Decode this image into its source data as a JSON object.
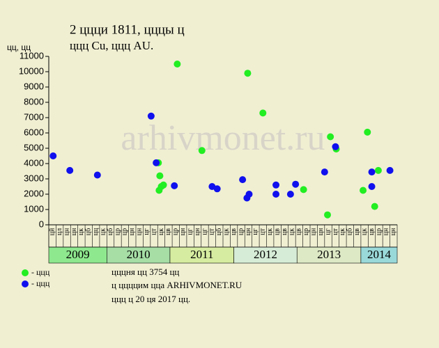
{
  "chart_data": {
    "type": "scatter",
    "title": "2 ццци 1811, цццы ц",
    "subtitle": "ццц Cu, ццц AU.",
    "y_label": "цц, цц",
    "watermark": "arhivmonet.ru",
    "xlim": [
      0,
      48
    ],
    "ylim": [
      0,
      11000
    ],
    "yticks": [
      0,
      1000,
      2000,
      3000,
      4000,
      5000,
      6000,
      7000,
      8000,
      9000,
      10000,
      11000
    ],
    "month_labels": [
      "цй",
      "цл",
      "цн",
      "цн",
      "цк",
      "цб",
      "цц",
      "цк",
      "цб",
      "цр",
      "цр",
      "цн",
      "цн",
      "цг",
      "цт",
      "цк",
      "цв",
      "цр",
      "цн",
      "цг",
      "цн",
      "цг",
      "цт",
      "цб",
      "цк",
      "цв",
      "цр",
      "цн",
      "цг",
      "цт",
      "цк",
      "цв",
      "цв",
      "цк",
      "цв",
      "цр",
      "цн",
      "цн",
      "цг",
      "цт",
      "цк",
      "цб",
      "цв",
      "цк",
      "цв",
      "цр",
      "цн",
      "цн"
    ],
    "years": [
      {
        "label": "2009",
        "range": [
          0,
          8
        ],
        "color": "#8ee88e"
      },
      {
        "label": "2010",
        "range": [
          8,
          16.7
        ],
        "color": "#a6dea6"
      },
      {
        "label": "2011",
        "range": [
          16.7,
          25.5
        ],
        "color": "#d6eca0"
      },
      {
        "label": "2012",
        "range": [
          25.5,
          34.2
        ],
        "color": "#d6ecd6"
      },
      {
        "label": "2013",
        "range": [
          34.2,
          43
        ],
        "color": "#dde9c4"
      },
      {
        "label": "2014",
        "range": [
          43,
          48
        ],
        "color": "#9ad9d9"
      }
    ],
    "series": [
      {
        "name": "- ццц",
        "color": "#22ee22",
        "x": [
          15.1,
          17.7,
          15.3,
          15.2,
          15.5,
          15.8,
          21.1,
          27.4,
          29.5,
          35.1,
          38.4,
          38.8,
          39.6,
          43.3,
          43.9,
          44.9,
          45.4
        ],
        "values": [
          4050,
          10500,
          3200,
          2250,
          2500,
          2600,
          4850,
          9900,
          7300,
          2300,
          650,
          5750,
          4950,
          2250,
          6050,
          1200,
          3550
        ]
      },
      {
        "name": "- ццц",
        "color": "#1010ee",
        "x": [
          0.6,
          2.9,
          6.7,
          14.1,
          14.8,
          17.3,
          22.5,
          23.2,
          26.7,
          27.3,
          27.6,
          31.3,
          31.3,
          33.3,
          34.0,
          38.0,
          39.5,
          44.5,
          44.5,
          47.0
        ],
        "values": [
          4500,
          3550,
          3250,
          7100,
          4050,
          2550,
          2500,
          2350,
          2950,
          1750,
          2000,
          2600,
          2000,
          2000,
          2650,
          3450,
          5100,
          3450,
          2500,
          3550
        ]
      }
    ],
    "notes": [
      "цццня цц 3754 цц",
      "ц ццццим цца ARHIVMONET.RU",
      "ццц ц 20 ця 2017 цц."
    ]
  }
}
